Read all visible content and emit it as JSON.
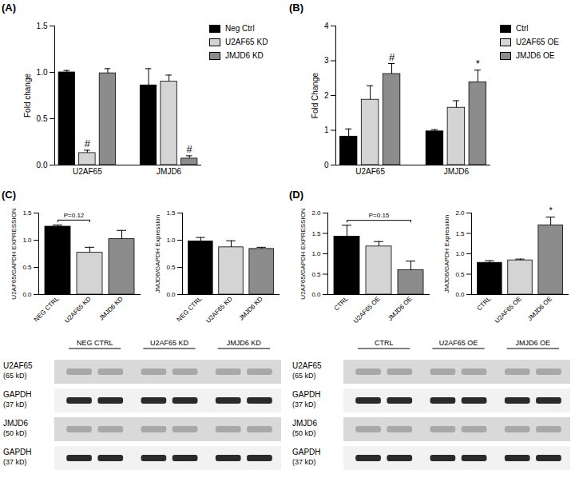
{
  "chart_data": [
    {
      "type": "bar",
      "title": "(A)",
      "categories": [
        "U2AF65",
        "JMJD6"
      ],
      "series": [
        {
          "name": "Neg Ctrl",
          "color": "#000000",
          "values": [
            1.0,
            0.86
          ],
          "errors": [
            0.02,
            0.18
          ]
        },
        {
          "name": "U2AF65 KD",
          "color": "#d4d4d4",
          "values": [
            0.13,
            0.9
          ],
          "errors": [
            0.03,
            0.07
          ]
        },
        {
          "name": "JMJD6 KD",
          "color": "#8c8c8c",
          "values": [
            0.99,
            0.07
          ],
          "errors": [
            0.05,
            0.03
          ]
        }
      ],
      "ylabel": "Fold change",
      "ylim": [
        0,
        1.5
      ],
      "yticks": [
        {
          "value": 0,
          "label": "0.0"
        },
        {
          "value": 0.5,
          "label": "0.5"
        },
        {
          "value": 1,
          "label": "1.0"
        },
        {
          "value": 1.5,
          "label": "1.5"
        }
      ],
      "legend": "right",
      "annotations": [
        {
          "category": "U2AF65",
          "series": "U2AF65 KD",
          "text": "#"
        },
        {
          "category": "JMJD6",
          "series": "JMJD6 KD",
          "text": "#"
        }
      ]
    },
    {
      "type": "bar",
      "title": "(B)",
      "categories": [
        "U2AF65",
        "JMJD6"
      ],
      "series": [
        {
          "name": "Ctrl",
          "color": "#000000",
          "values": [
            0.82,
            0.97
          ],
          "errors": [
            0.22,
            0.05
          ]
        },
        {
          "name": "U2AF65 OE",
          "color": "#d4d4d4",
          "values": [
            1.88,
            1.65
          ],
          "errors": [
            0.4,
            0.2
          ]
        },
        {
          "name": "JMJD6 OE",
          "color": "#8c8c8c",
          "values": [
            2.62,
            2.38
          ],
          "errors": [
            0.3,
            0.35
          ]
        }
      ],
      "ylabel": "Fold Change",
      "ylim": [
        0,
        4
      ],
      "yticks": [
        0,
        1,
        2,
        3,
        4
      ],
      "legend": "right",
      "annotations": [
        {
          "category": "U2AF65",
          "series": "JMJD6 OE",
          "text": "#"
        },
        {
          "category": "JMJD6",
          "series": "JMJD6 OE",
          "text": "*"
        }
      ]
    },
    {
      "type": "bar",
      "title": "(C)",
      "categories": [
        "NEG CTRL",
        "U2AF65 KD",
        "JMJD6 KD"
      ],
      "values": [
        1.25,
        0.77,
        1.02
      ],
      "errors": [
        0.03,
        0.1,
        0.16
      ],
      "colors": [
        "#000000",
        "#d4d4d4",
        "#8c8c8c"
      ],
      "ylabel": "U2AF65/GAPDH EXPRESSION",
      "ylim": [
        0,
        1.5
      ],
      "yticks": [
        {
          "value": 0,
          "label": "0.0"
        },
        {
          "value": 0.5,
          "label": "0.5"
        },
        {
          "value": 1,
          "label": "1.0"
        },
        {
          "value": 1.5,
          "label": "1.5"
        }
      ],
      "annotations": [
        {
          "from": "NEG CTRL",
          "to": "U2AF65 KD",
          "text": "P=0.12"
        }
      ]
    },
    {
      "type": "bar",
      "categories": [
        "NEG CTRL",
        "U2AF65 KD",
        "JMJD6 KD"
      ],
      "values": [
        0.98,
        0.87,
        0.84
      ],
      "errors": [
        0.07,
        0.12,
        0.03
      ],
      "colors": [
        "#000000",
        "#d4d4d4",
        "#8c8c8c"
      ],
      "ylabel": "JMJD6/GAPDH Expression",
      "ylim": [
        0,
        1.5
      ],
      "yticks": [
        {
          "value": 0,
          "label": "0.0"
        },
        {
          "value": 0.5,
          "label": "0.5"
        },
        {
          "value": 1,
          "label": "1.0"
        },
        {
          "value": 1.5,
          "label": "1.5"
        }
      ]
    },
    {
      "type": "bar",
      "title": "(D)",
      "categories": [
        "CTRL",
        "U2AF65 OE",
        "JMJD6 OE"
      ],
      "values": [
        1.42,
        1.18,
        0.6
      ],
      "errors": [
        0.28,
        0.12,
        0.22
      ],
      "colors": [
        "#000000",
        "#d4d4d4",
        "#8c8c8c"
      ],
      "ylabel": "U2AF65/GAPDH EXPRESSION",
      "ylim": [
        0,
        2
      ],
      "yticks": [
        {
          "value": 0,
          "label": "0.0"
        },
        {
          "value": 0.5,
          "label": "0.5"
        },
        {
          "value": 1,
          "label": "1.0"
        },
        {
          "value": 1.5,
          "label": "1.5"
        },
        {
          "value": 2,
          "label": "2.0"
        }
      ],
      "annotations": [
        {
          "from": "CTRL",
          "to": "JMJD6 OE",
          "text": "P=0.15"
        }
      ]
    },
    {
      "type": "bar",
      "categories": [
        "CTRL",
        "U2AF65 OE",
        "JMJD6 OE"
      ],
      "values": [
        0.78,
        0.84,
        1.7
      ],
      "errors": [
        0.05,
        0.03,
        0.2
      ],
      "colors": [
        "#000000",
        "#d4d4d4",
        "#8c8c8c"
      ],
      "ylabel": "JMJD6/GAPDH Expression",
      "ylim": [
        0,
        2
      ],
      "yticks": [
        {
          "value": 0,
          "label": "0.0"
        },
        {
          "value": 0.5,
          "label": "0.5"
        },
        {
          "value": 1,
          "label": "1.0"
        },
        {
          "value": 1.5,
          "label": "1.5"
        },
        {
          "value": 2,
          "label": "2.0"
        }
      ],
      "annotations": [
        {
          "category": "JMJD6 OE",
          "text": "*"
        }
      ]
    }
  ],
  "blots": [
    {
      "groups": [
        "NEG CTRL",
        "U2AF65 KD",
        "JMJD6 KD"
      ],
      "rows": [
        {
          "protein": "U2AF65",
          "size": "(65 kD)"
        },
        {
          "protein": "GAPDH",
          "size": "(37 kD)"
        },
        {
          "protein": "JMJD6",
          "size": "(50 kD)"
        },
        {
          "protein": "GAPDH",
          "size": "(37 kD)"
        }
      ]
    },
    {
      "groups": [
        "CTRL",
        "U2AF65 OE",
        "JMJD6 OE"
      ],
      "rows": [
        {
          "protein": "U2AF65",
          "size": "(65 kD)"
        },
        {
          "protein": "GAPDH",
          "size": "(37 kD)"
        },
        {
          "protein": "JMJD6",
          "size": "(50 kD)"
        },
        {
          "protein": "GAPDH",
          "size": "(37 kD)"
        }
      ]
    }
  ]
}
